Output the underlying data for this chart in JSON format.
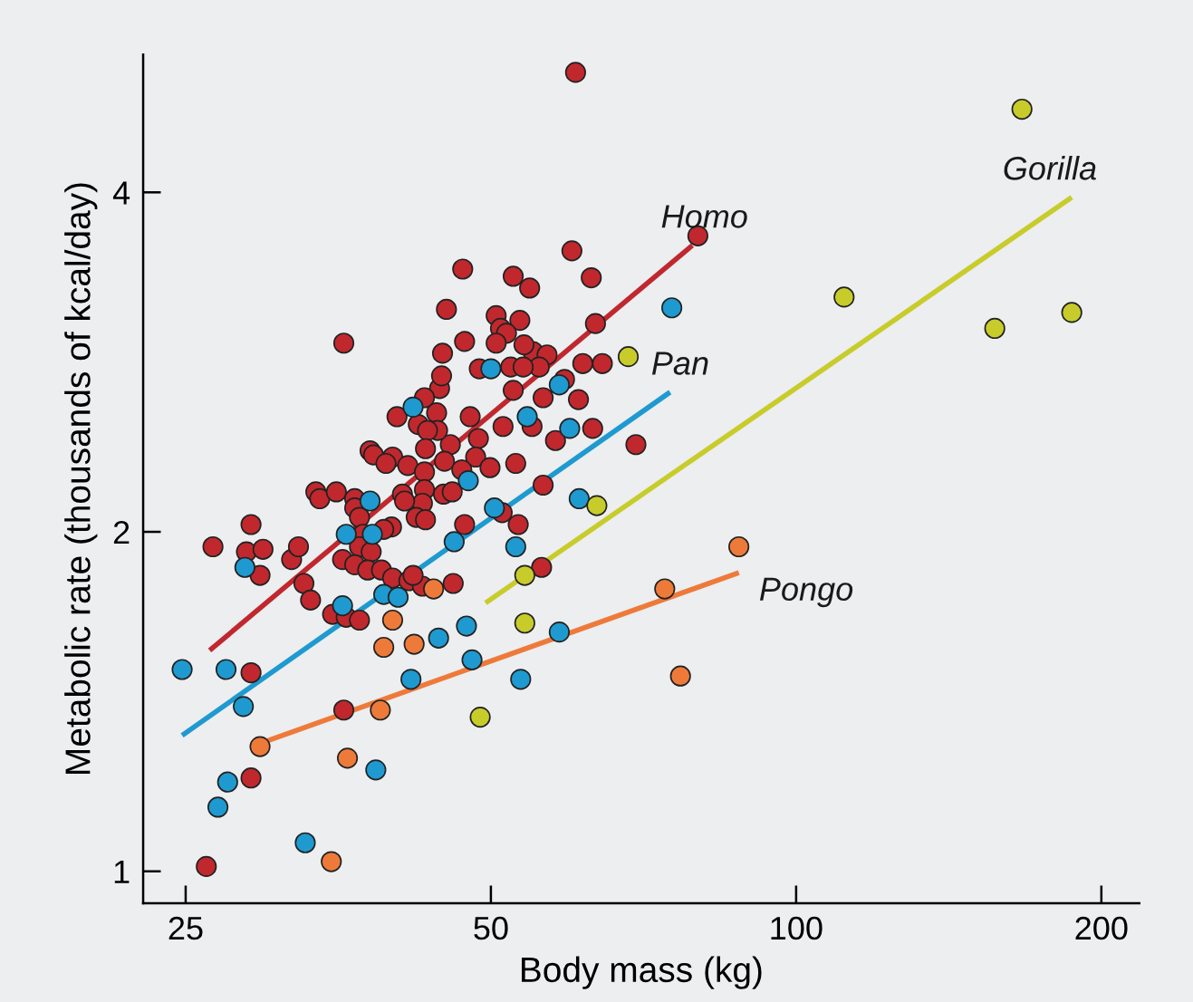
{
  "chart_data": {
    "type": "scatter",
    "xlabel": "Body mass (kg)",
    "ylabel": "Metabolic rate (thousands of kcal/day)",
    "log": "xy",
    "grid": false,
    "legend": false,
    "xlim": [
      22.7,
      218
    ],
    "ylim": [
      0.937,
      5.3
    ],
    "xticks": [
      25,
      50,
      100,
      200
    ],
    "yticks": [
      1,
      2,
      4
    ],
    "series": [
      {
        "marker": "circle",
        "color": "#c0282e",
        "x": [
          60.6,
          80.0,
          60.1,
          62.8,
          52.6,
          54.6,
          46.9,
          45.2,
          63.4,
          50.6,
          53.4,
          51.1,
          51.8,
          50.6,
          35.8,
          47.1,
          55.0,
          56.8,
          53.9,
          64.4,
          61.6,
          59.1,
          55.8,
          52.3,
          53.8,
          44.8,
          48.7,
          44.5,
          43.0,
          56.3,
          61.0,
          52.6,
          44.7,
          44.2,
          40.4,
          47.7,
          51.4,
          54.9,
          63.0,
          57.9,
          48.6,
          45.6,
          69.5,
          44.3,
          42.4,
          43.3,
          43.1,
          38.0,
          38.3,
          40.0,
          41.4,
          43.0,
          48.3,
          49.9,
          52.9,
          45.0,
          46.8,
          39.4,
          40.9,
          43.0,
          44.9,
          45.8,
          42.8,
          56.3,
          33.6,
          33.9,
          35.2,
          36.7,
          36.7,
          37.1,
          41.1,
          42.2,
          43.1,
          47.1,
          53.2,
          39.9,
          39.2,
          37.4,
          37.1,
          38.1,
          35.7,
          36.7,
          37.8,
          39.0,
          40.0,
          41.5,
          42.8,
          41.9,
          45.9,
          51.3,
          56.1,
          29.0,
          26.6,
          28.7,
          29.8,
          29.6,
          31.8,
          32.3,
          32.7,
          33.2,
          34.9,
          36.0,
          37.1,
          29.0,
          35.8,
          29.0,
          26.2
        ],
        "values": [
          5.11,
          3.66,
          3.55,
          3.36,
          3.37,
          3.29,
          3.42,
          3.15,
          3.06,
          3.11,
          3.08,
          3.03,
          3.0,
          2.94,
          2.94,
          2.95,
          2.89,
          2.87,
          2.93,
          2.82,
          2.82,
          2.73,
          2.8,
          2.8,
          2.8,
          2.88,
          2.79,
          2.68,
          2.63,
          2.63,
          2.62,
          2.67,
          2.75,
          2.55,
          2.53,
          2.53,
          2.48,
          2.48,
          2.47,
          2.41,
          2.42,
          2.39,
          2.39,
          2.46,
          2.49,
          2.46,
          2.37,
          2.36,
          2.34,
          2.33,
          2.29,
          2.26,
          2.33,
          2.28,
          2.3,
          2.31,
          2.27,
          2.3,
          2.16,
          2.18,
          2.16,
          2.17,
          2.12,
          2.2,
          2.17,
          2.14,
          2.17,
          2.14,
          2.1,
          2.06,
          2.13,
          2.06,
          2.05,
          2.03,
          2.03,
          2.02,
          2.01,
          1.99,
          1.94,
          1.92,
          1.89,
          1.87,
          1.85,
          1.85,
          1.82,
          1.81,
          1.79,
          1.83,
          1.8,
          2.08,
          1.86,
          2.03,
          1.94,
          1.92,
          1.93,
          1.83,
          1.89,
          1.94,
          1.8,
          1.74,
          1.69,
          1.68,
          1.67,
          1.5,
          1.39,
          1.21,
          1.01
        ]
      },
      {
        "marker": "circle",
        "color": "#1e9ad0",
        "x": [
          75.4,
          50.0,
          58.4,
          41.9,
          59.8,
          54.3,
          47.5,
          50.4,
          61.1,
          38.0,
          36.0,
          38.2,
          28.6,
          46.0,
          52.9,
          39.2,
          40.5,
          35.7,
          47.3,
          44.4,
          58.4,
          47.9,
          41.7,
          53.5,
          24.8,
          27.4,
          28.5,
          27.5,
          26.9,
          38.5,
          32.8
        ],
        "values": [
          3.16,
          2.79,
          2.7,
          2.58,
          2.47,
          2.53,
          2.22,
          2.1,
          2.14,
          2.13,
          1.99,
          1.99,
          1.86,
          1.96,
          1.94,
          1.76,
          1.75,
          1.72,
          1.65,
          1.61,
          1.63,
          1.54,
          1.48,
          1.48,
          1.51,
          1.51,
          1.4,
          1.2,
          1.14,
          1.23,
          1.06
        ]
      },
      {
        "marker": "circle",
        "color": "#ee7a3a",
        "x": [
          87.8,
          74.2,
          76.9,
          43.9,
          40.0,
          39.2,
          42.0,
          38.9,
          29.6,
          36.1,
          34.8
        ],
        "values": [
          1.94,
          1.78,
          1.49,
          1.78,
          1.67,
          1.58,
          1.59,
          1.39,
          1.29,
          1.26,
          1.02
        ]
      },
      {
        "marker": "circle",
        "color": "#c8cc2a",
        "x": [
          167,
          157,
          187,
          111.5,
          68.3,
          63.6,
          54.0,
          54.0,
          48.8
        ],
        "values": [
          4.74,
          3.03,
          3.13,
          3.23,
          2.86,
          2.11,
          1.83,
          1.66,
          1.37
        ]
      },
      {
        "type": "line",
        "marker": "none",
        "name": "Homo",
        "color": "#c0282e",
        "x": [
          26.4,
          79.0
        ],
        "values": [
          1.57,
          3.59
        ]
      },
      {
        "type": "line",
        "marker": "none",
        "name": "Pan",
        "color": "#1e9ad0",
        "x": [
          24.8,
          75.1
        ],
        "values": [
          1.32,
          2.66
        ]
      },
      {
        "type": "line",
        "marker": "none",
        "name": "Pongo",
        "color": "#ee7a3a",
        "x": [
          29.0,
          87.8
        ],
        "values": [
          1.29,
          1.84
        ]
      },
      {
        "type": "line",
        "marker": "none",
        "name": "Gorilla",
        "color": "#c8cc2a",
        "x": [
          49.4,
          187
        ],
        "values": [
          1.73,
          3.96
        ]
      }
    ]
  }
}
